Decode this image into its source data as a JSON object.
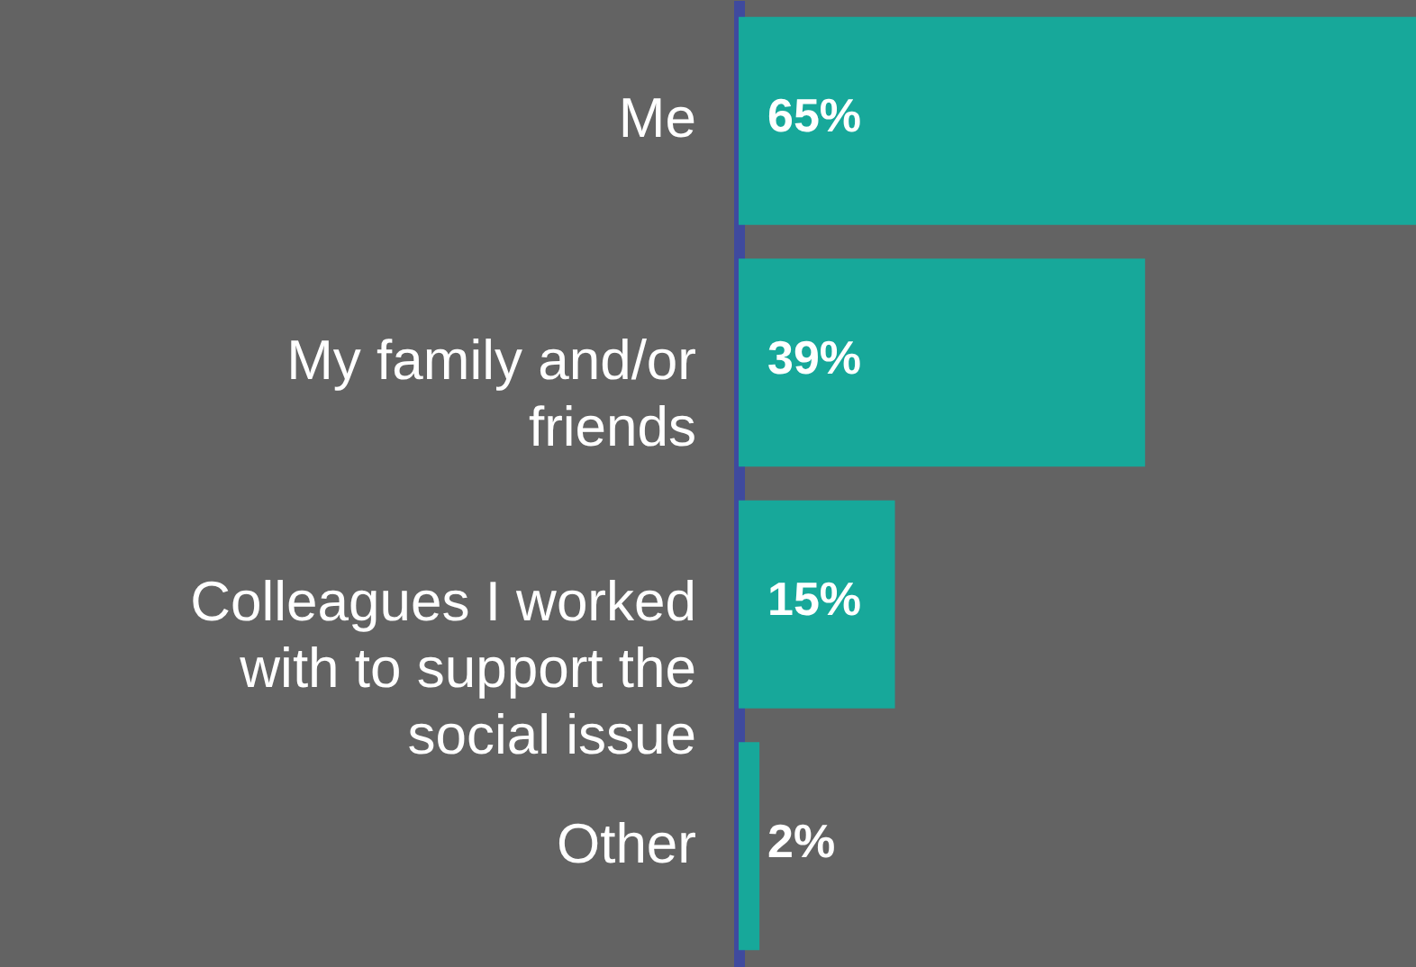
{
  "chart_data": {
    "type": "bar",
    "orientation": "horizontal",
    "categories": [
      "Me",
      "My family and/or friends",
      "Colleagues I worked with to support the social issue",
      "Other"
    ],
    "values": [
      65,
      39,
      15,
      2
    ],
    "value_labels": [
      "65%",
      "39%",
      "15%",
      "2%"
    ],
    "color": "#17a89a",
    "tick_labels": "y"
  }
}
